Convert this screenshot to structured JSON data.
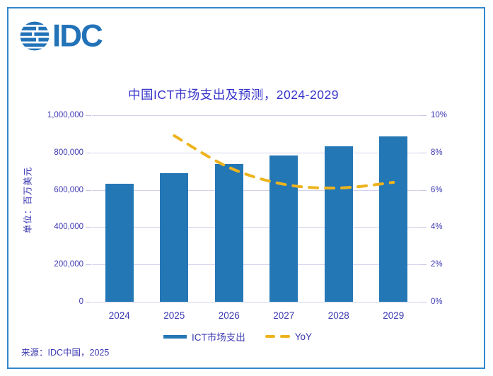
{
  "logo": {
    "text": "IDC",
    "color": "#2272b8"
  },
  "chart_data": {
    "type": "bar",
    "title": "中国ICT市场支出及预测，2024-2029",
    "categories": [
      "2024",
      "2025",
      "2026",
      "2027",
      "2028",
      "2029"
    ],
    "series": [
      {
        "name": "ICT市场支出",
        "type": "bar",
        "axis": "left",
        "values": [
          634000,
          688000,
          740000,
          783000,
          835000,
          888000
        ]
      },
      {
        "name": "YoY",
        "type": "line",
        "axis": "right",
        "unit": "%",
        "values": [
          null,
          8.9,
          7.2,
          6.3,
          6.1,
          6.4
        ]
      }
    ],
    "ylabel_left": "单位：百万美元",
    "left_axis": {
      "min": 0,
      "max": 1000000,
      "step": 200000,
      "tick_labels": [
        "0",
        "200,000",
        "400,000",
        "600,000",
        "800,000",
        "1,000,000"
      ]
    },
    "right_axis": {
      "min": 0,
      "max": 10,
      "step": 2,
      "tick_labels": [
        "0%",
        "2%",
        "4%",
        "6%",
        "8%",
        "10%"
      ]
    },
    "grid": true,
    "legend_position": "bottom"
  },
  "source": {
    "text": "来源：IDC中国，2025"
  },
  "colors": {
    "bar": "#2477b5",
    "line": "#edb41e",
    "title": "#3633c9",
    "axis_text": "#3b38b0",
    "gridline": "#d2d2ec",
    "border": "#3188cc",
    "logo": "#2272b8"
  }
}
